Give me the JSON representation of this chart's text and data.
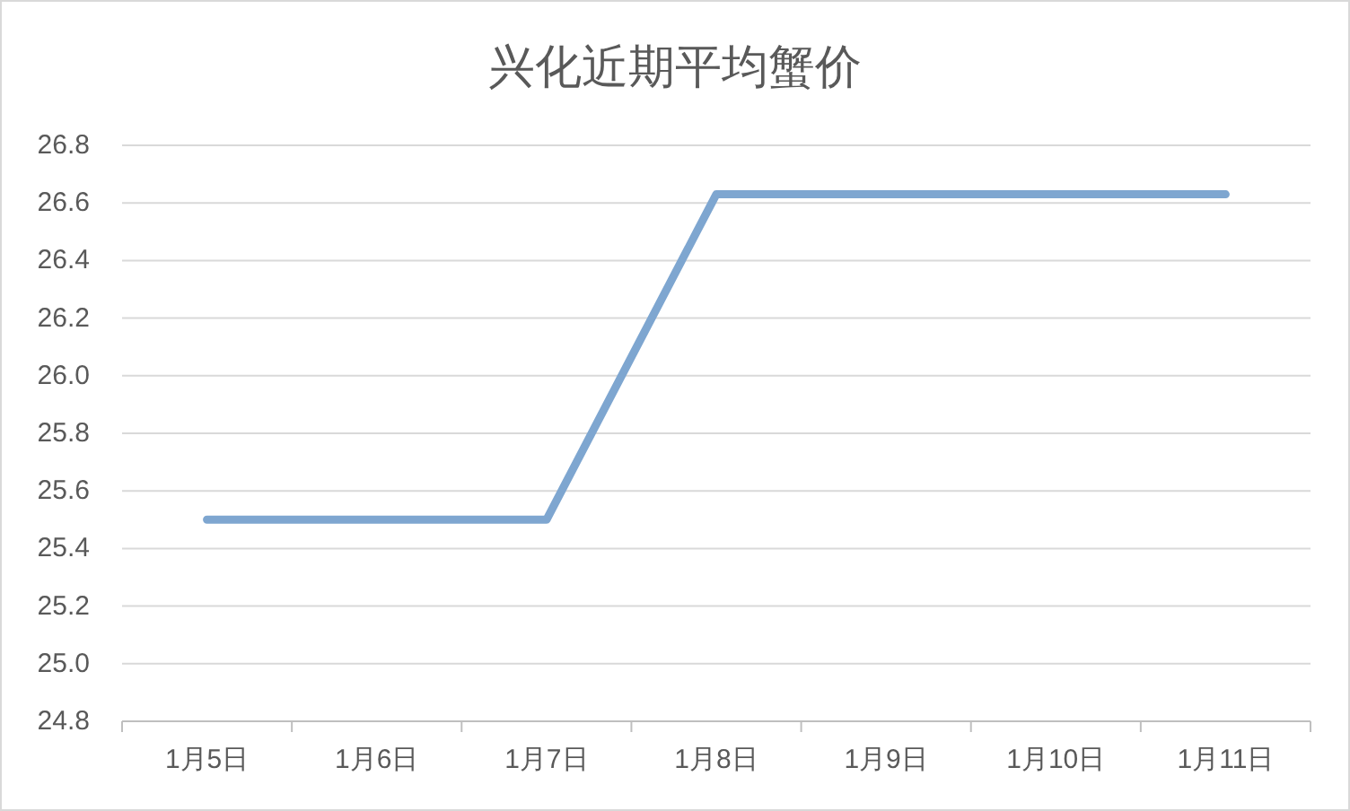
{
  "chart_data": {
    "type": "line",
    "title": "兴化近期平均蟹价",
    "categories": [
      "1月5日",
      "1月6日",
      "1月7日",
      "1月8日",
      "1月9日",
      "1月10日",
      "1月11日"
    ],
    "values": [
      25.5,
      25.5,
      25.5,
      26.63,
      26.63,
      26.63,
      26.63
    ],
    "color": "#7ea6d0",
    "ylim": [
      24.8,
      26.8
    ],
    "yticks": [
      24.8,
      {
        "value": 25,
        "label": "25.0"
      },
      25.2,
      25.4,
      25.6,
      25.8,
      {
        "value": 26,
        "label": "26.0"
      },
      26.2,
      26.4,
      26.6,
      26.8
    ],
    "grid": "y",
    "line_style": "solid"
  }
}
